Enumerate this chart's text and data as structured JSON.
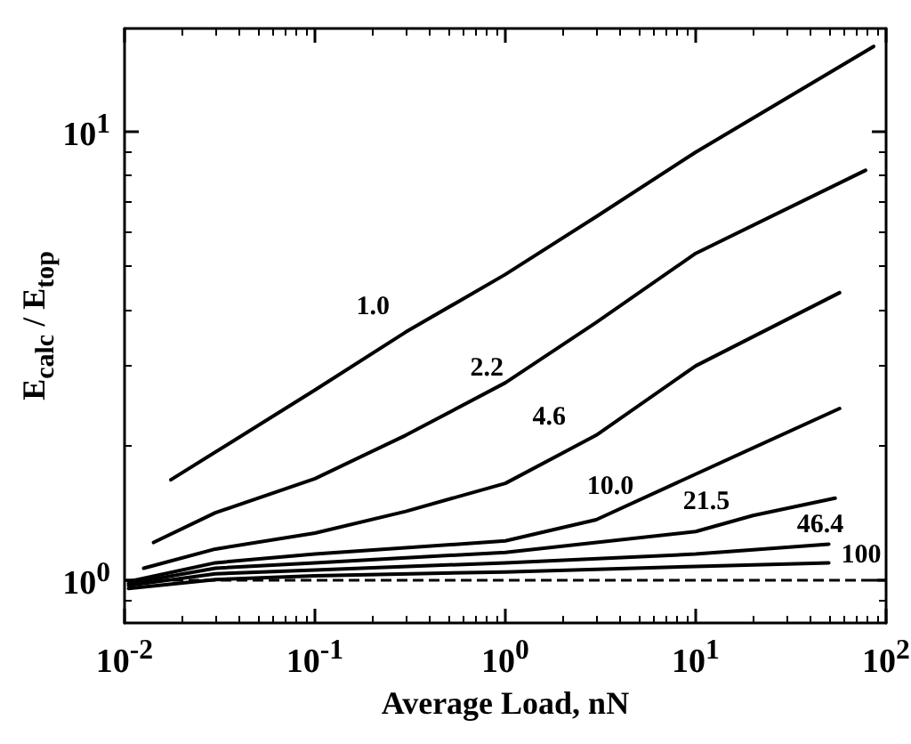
{
  "chart_data": {
    "type": "line",
    "xlabel": "Average Load, nN",
    "ylabel": "E$_{calc}$ / E$_{top}$",
    "log": "xy",
    "grid": false,
    "legend": false,
    "marker": "none",
    "line_style": "solid",
    "xlim": [
      0.01,
      100
    ],
    "ylim": [
      0.8,
      17
    ],
    "xticks": [
      {
        "value": 0.01,
        "label": "10$^{-2}$"
      },
      {
        "value": 0.02,
        "label": null
      },
      {
        "value": 0.03,
        "label": null
      },
      {
        "value": 0.04,
        "label": null
      },
      {
        "value": 0.05,
        "label": null
      },
      {
        "value": 0.06,
        "label": null
      },
      {
        "value": 0.07,
        "label": null
      },
      {
        "value": 0.08,
        "label": null
      },
      {
        "value": 0.09,
        "label": null
      },
      {
        "value": 0.1,
        "label": "10$^{-1}$"
      },
      {
        "value": 0.2,
        "label": null
      },
      {
        "value": 0.3,
        "label": null
      },
      {
        "value": 0.4,
        "label": null
      },
      {
        "value": 0.5,
        "label": null
      },
      {
        "value": 0.6,
        "label": null
      },
      {
        "value": 0.7,
        "label": null
      },
      {
        "value": 0.8,
        "label": null
      },
      {
        "value": 0.9,
        "label": null
      },
      {
        "value": 1,
        "label": "10$^{0}$"
      },
      {
        "value": 2,
        "label": null
      },
      {
        "value": 3,
        "label": null
      },
      {
        "value": 4,
        "label": null
      },
      {
        "value": 5,
        "label": null
      },
      {
        "value": 6,
        "label": null
      },
      {
        "value": 7,
        "label": null
      },
      {
        "value": 8,
        "label": null
      },
      {
        "value": 9,
        "label": null
      },
      {
        "value": 10,
        "label": "10$^{1}$"
      },
      {
        "value": 20,
        "label": null
      },
      {
        "value": 30,
        "label": null
      },
      {
        "value": 40,
        "label": null
      },
      {
        "value": 50,
        "label": null
      },
      {
        "value": 60,
        "label": null
      },
      {
        "value": 70,
        "label": null
      },
      {
        "value": 80,
        "label": null
      },
      {
        "value": 90,
        "label": null
      },
      {
        "value": 100,
        "label": "10$^{2}$"
      }
    ],
    "yticks": [
      {
        "value": 0.9,
        "label": null
      },
      {
        "value": 1,
        "label": "10$^{0}$"
      },
      {
        "value": 2,
        "label": null
      },
      {
        "value": 3,
        "label": null
      },
      {
        "value": 4,
        "label": null
      },
      {
        "value": 5,
        "label": null
      },
      {
        "value": 6,
        "label": null
      },
      {
        "value": 7,
        "label": null
      },
      {
        "value": 8,
        "label": null
      },
      {
        "value": 9,
        "label": null
      },
      {
        "value": 10,
        "label": "10$^{1}$"
      }
    ],
    "series": [
      {
        "name": "1.0",
        "color": "#000000",
        "x": [
          0.0175,
          0.1,
          0.3,
          1,
          3,
          10,
          86
        ],
        "values": [
          1.67,
          2.65,
          3.57,
          4.8,
          6.46,
          9.0,
          15.5
        ]
      },
      {
        "name": "2.2",
        "color": "#000000",
        "x": [
          0.0142,
          0.03,
          0.1,
          0.3,
          1,
          3,
          10,
          78
        ],
        "values": [
          1.21,
          1.41,
          1.68,
          2.1,
          2.75,
          3.75,
          5.35,
          8.2
        ]
      },
      {
        "name": "4.6",
        "color": "#000000",
        "x": [
          0.0126,
          0.03,
          0.1,
          0.3,
          1,
          3,
          10,
          57
        ],
        "values": [
          1.06,
          1.17,
          1.27,
          1.42,
          1.64,
          2.1,
          3.0,
          4.37
        ]
      },
      {
        "name": "10.0",
        "color": "#000000",
        "x": [
          0.0105,
          0.03,
          0.1,
          1,
          3,
          10,
          57
        ],
        "values": [
          0.99,
          1.09,
          1.14,
          1.22,
          1.36,
          1.72,
          2.41
        ]
      },
      {
        "name": "21.5",
        "color": "#000000",
        "x": [
          0.0105,
          0.03,
          0.1,
          1,
          10,
          20,
          54
        ],
        "values": [
          0.98,
          1.06,
          1.09,
          1.15,
          1.28,
          1.39,
          1.52
        ]
      },
      {
        "name": "46.4",
        "color": "#000000",
        "x": [
          0.0105,
          0.03,
          0.1,
          1,
          10,
          50
        ],
        "values": [
          0.97,
          1.03,
          1.05,
          1.09,
          1.14,
          1.2
        ]
      },
      {
        "name": "100",
        "color": "#000000",
        "x": [
          0.0105,
          0.03,
          0.1,
          1,
          10,
          50
        ],
        "values": [
          0.955,
          1.0,
          1.02,
          1.04,
          1.07,
          1.09
        ]
      }
    ],
    "ref_lines": [
      {
        "axis": "y",
        "value": 1,
        "label": null,
        "line_style": "dashed",
        "color": "#000000"
      }
    ]
  }
}
